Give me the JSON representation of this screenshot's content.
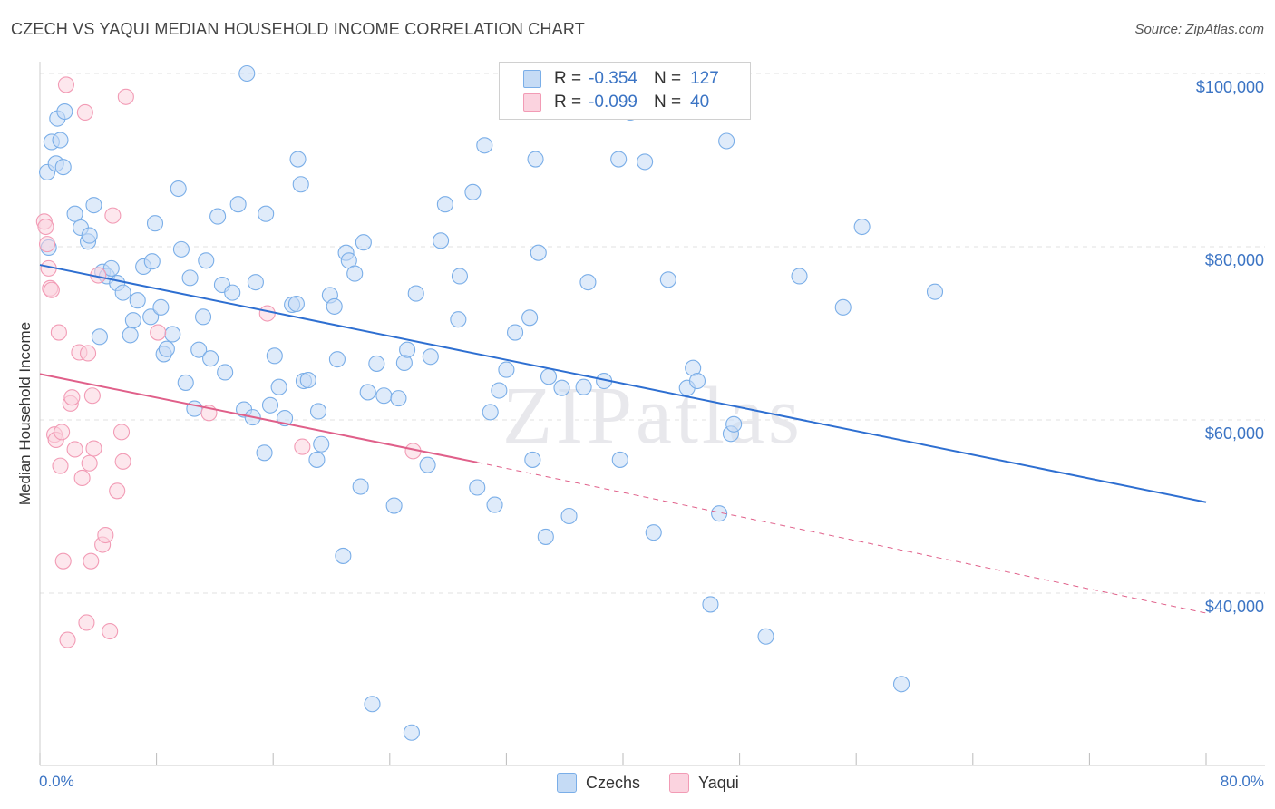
{
  "title": "CZECH VS YAQUI MEDIAN HOUSEHOLD INCOME CORRELATION CHART",
  "source": "Source: ZipAtlas.com",
  "watermark": "ZIPatlas",
  "colors": {
    "czech": "#7aaee8",
    "czech_line": "#2e6fd1",
    "yaqui": "#f29bb5",
    "yaqui_line": "#e0608a",
    "tick_text": "#3b74c4"
  },
  "legend": {
    "czech": {
      "r_label": "R =",
      "r_value": "-0.354",
      "n_label": "N =",
      "n_value": "127"
    },
    "yaqui": {
      "r_label": "R =",
      "r_value": "-0.099",
      "n_label": "N =",
      "n_value": "40"
    }
  },
  "bottom_legend": {
    "czech": "Czechs",
    "yaqui": "Yaqui"
  },
  "chart_data": {
    "type": "scatter",
    "title": "CZECH VS YAQUI MEDIAN HOUSEHOLD INCOME CORRELATION CHART",
    "xlabel": "",
    "ylabel": "Median Household Income",
    "xlim": [
      0,
      80
    ],
    "ylim": [
      20000,
      104000
    ],
    "x_tick_labels": [
      "0.0%",
      "80.0%"
    ],
    "y_tick_labels": [
      "$100,000",
      "$80,000",
      "$60,000",
      "$40,000"
    ],
    "y_ticks": [
      100000,
      80000,
      60000,
      40000
    ],
    "grid": true,
    "series": [
      {
        "name": "Czechs",
        "trend": {
          "x": [
            0,
            80
          ],
          "y": [
            77900,
            50500
          ]
        },
        "points": [
          [
            0.5,
            88600
          ],
          [
            0.6,
            79900
          ],
          [
            0.8,
            92100
          ],
          [
            1.1,
            89600
          ],
          [
            1.2,
            94800
          ],
          [
            1.4,
            92300
          ],
          [
            1.6,
            89200
          ],
          [
            1.7,
            95600
          ],
          [
            2.4,
            83800
          ],
          [
            2.8,
            82200
          ],
          [
            3.3,
            80600
          ],
          [
            3.4,
            81300
          ],
          [
            3.7,
            84800
          ],
          [
            4.1,
            69600
          ],
          [
            4.3,
            77100
          ],
          [
            4.6,
            76600
          ],
          [
            4.9,
            77500
          ],
          [
            5.3,
            75800
          ],
          [
            5.7,
            74700
          ],
          [
            6.2,
            69800
          ],
          [
            6.4,
            71500
          ],
          [
            6.7,
            73800
          ],
          [
            7.1,
            77700
          ],
          [
            7.6,
            71900
          ],
          [
            7.7,
            78300
          ],
          [
            7.9,
            82700
          ],
          [
            8.3,
            73000
          ],
          [
            8.5,
            67600
          ],
          [
            8.7,
            68200
          ],
          [
            9.1,
            69900
          ],
          [
            9.5,
            86700
          ],
          [
            9.7,
            79700
          ],
          [
            10.0,
            64300
          ],
          [
            10.3,
            76400
          ],
          [
            10.6,
            61300
          ],
          [
            10.9,
            68100
          ],
          [
            11.2,
            71900
          ],
          [
            11.4,
            78400
          ],
          [
            11.7,
            67100
          ],
          [
            12.2,
            83500
          ],
          [
            12.5,
            75600
          ],
          [
            12.7,
            65500
          ],
          [
            13.2,
            74700
          ],
          [
            13.6,
            84900
          ],
          [
            14.0,
            61200
          ],
          [
            14.2,
            100000
          ],
          [
            14.6,
            60300
          ],
          [
            14.8,
            75900
          ],
          [
            15.4,
            56200
          ],
          [
            15.5,
            83800
          ],
          [
            15.8,
            61700
          ],
          [
            16.1,
            67400
          ],
          [
            16.4,
            63800
          ],
          [
            16.8,
            60200
          ],
          [
            17.3,
            73300
          ],
          [
            17.6,
            73400
          ],
          [
            17.7,
            90100
          ],
          [
            17.9,
            87200
          ],
          [
            18.1,
            64500
          ],
          [
            18.4,
            64600
          ],
          [
            19.0,
            55400
          ],
          [
            19.1,
            61000
          ],
          [
            19.3,
            57200
          ],
          [
            19.9,
            74400
          ],
          [
            20.2,
            73100
          ],
          [
            20.4,
            67000
          ],
          [
            20.8,
            44300
          ],
          [
            21.0,
            79300
          ],
          [
            21.2,
            78400
          ],
          [
            21.6,
            76900
          ],
          [
            22.0,
            52300
          ],
          [
            22.2,
            80500
          ],
          [
            22.5,
            63200
          ],
          [
            22.8,
            27200
          ],
          [
            23.1,
            66500
          ],
          [
            23.6,
            62800
          ],
          [
            24.3,
            50100
          ],
          [
            24.6,
            62500
          ],
          [
            25.0,
            66600
          ],
          [
            25.2,
            68100
          ],
          [
            25.5,
            23900
          ],
          [
            25.8,
            74600
          ],
          [
            26.6,
            54800
          ],
          [
            26.8,
            67300
          ],
          [
            27.5,
            80700
          ],
          [
            27.8,
            84900
          ],
          [
            28.7,
            71600
          ],
          [
            28.8,
            76600
          ],
          [
            29.7,
            86300
          ],
          [
            30.0,
            52200
          ],
          [
            30.5,
            91700
          ],
          [
            30.9,
            60900
          ],
          [
            31.2,
            50200
          ],
          [
            31.5,
            63400
          ],
          [
            32.0,
            65800
          ],
          [
            32.6,
            70100
          ],
          [
            33.6,
            71800
          ],
          [
            33.8,
            55400
          ],
          [
            34.0,
            90100
          ],
          [
            34.2,
            79300
          ],
          [
            34.7,
            46500
          ],
          [
            34.9,
            65000
          ],
          [
            35.8,
            63700
          ],
          [
            36.3,
            48900
          ],
          [
            37.3,
            63800
          ],
          [
            37.6,
            75900
          ],
          [
            38.7,
            64500
          ],
          [
            39.7,
            90100
          ],
          [
            39.8,
            55400
          ],
          [
            40.5,
            95500
          ],
          [
            41.5,
            89800
          ],
          [
            42.1,
            47000
          ],
          [
            43.1,
            76200
          ],
          [
            44.4,
            63700
          ],
          [
            44.8,
            66000
          ],
          [
            45.1,
            64500
          ],
          [
            46.0,
            38700
          ],
          [
            46.6,
            49200
          ],
          [
            47.1,
            92200
          ],
          [
            47.4,
            58400
          ],
          [
            47.6,
            59500
          ],
          [
            49.8,
            35000
          ],
          [
            52.1,
            76600
          ],
          [
            55.1,
            73000
          ],
          [
            56.4,
            82300
          ],
          [
            59.1,
            29500
          ],
          [
            61.4,
            74800
          ]
        ]
      },
      {
        "name": "Yaqui",
        "trend": {
          "x": [
            0,
            30
          ],
          "y": [
            65300,
            55100
          ]
        },
        "trend_dashed": {
          "x": [
            30,
            80
          ],
          "y": [
            55100,
            37700
          ]
        },
        "points": [
          [
            0.3,
            82900
          ],
          [
            0.4,
            82300
          ],
          [
            0.5,
            80300
          ],
          [
            0.6,
            77500
          ],
          [
            0.7,
            75200
          ],
          [
            0.8,
            75000
          ],
          [
            1.0,
            58300
          ],
          [
            1.1,
            57700
          ],
          [
            1.3,
            70100
          ],
          [
            1.4,
            54700
          ],
          [
            1.5,
            58600
          ],
          [
            1.6,
            43700
          ],
          [
            1.8,
            98700
          ],
          [
            1.9,
            34600
          ],
          [
            2.1,
            61900
          ],
          [
            2.2,
            62600
          ],
          [
            2.4,
            56600
          ],
          [
            2.7,
            67800
          ],
          [
            2.9,
            53300
          ],
          [
            3.1,
            95500
          ],
          [
            3.2,
            36600
          ],
          [
            3.3,
            67700
          ],
          [
            3.4,
            55000
          ],
          [
            3.5,
            43700
          ],
          [
            3.6,
            62800
          ],
          [
            3.7,
            56700
          ],
          [
            4.0,
            76700
          ],
          [
            4.3,
            45600
          ],
          [
            4.5,
            46700
          ],
          [
            4.8,
            35600
          ],
          [
            5.0,
            83600
          ],
          [
            5.3,
            51800
          ],
          [
            5.6,
            58600
          ],
          [
            5.7,
            55200
          ],
          [
            5.9,
            97300
          ],
          [
            8.1,
            70100
          ],
          [
            11.6,
            60800
          ],
          [
            15.6,
            72300
          ],
          [
            25.6,
            56400
          ],
          [
            18.0,
            56900
          ]
        ]
      }
    ]
  }
}
